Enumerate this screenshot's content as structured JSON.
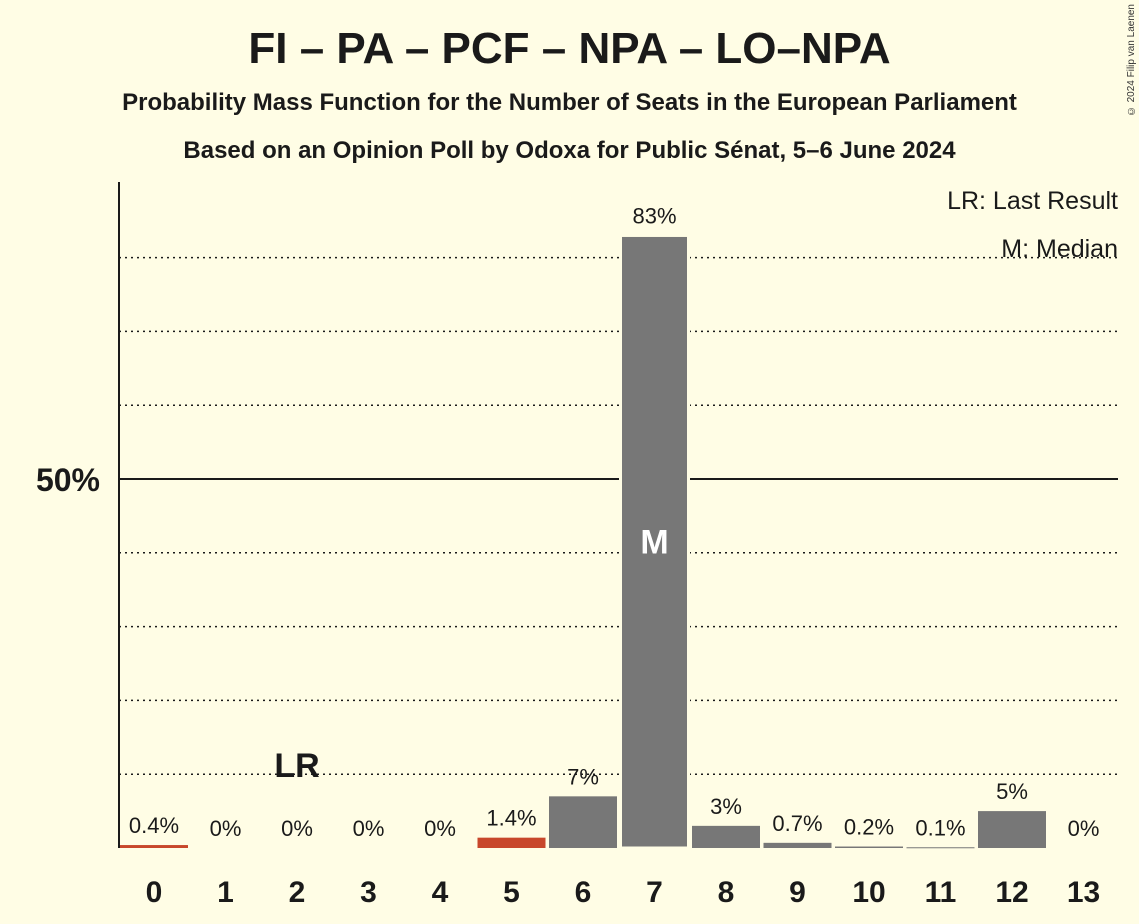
{
  "header": {
    "title": "FI – PA – PCF – NPA – LO–NPA",
    "subtitle1": "Probability Mass Function for the Number of Seats in the European Parliament",
    "subtitle2": "Based on an Opinion Poll by Odoxa for Public Sénat, 5–6 June 2024",
    "copyright": "© 2024 Filip van Laenen"
  },
  "legend": {
    "lr": "LR: Last Result",
    "median": "M: Median"
  },
  "colors": {
    "bar": "#777777",
    "last_result_bar": "#C8472B",
    "background": "#FFFDE5"
  },
  "chart_data": {
    "type": "bar",
    "categories": [
      "0",
      "1",
      "2",
      "3",
      "4",
      "5",
      "6",
      "7",
      "8",
      "9",
      "10",
      "11",
      "12",
      "13"
    ],
    "values": [
      0.4,
      0,
      0,
      0,
      0,
      1.4,
      7,
      83,
      3,
      0.7,
      0.2,
      0.1,
      5,
      0
    ],
    "labels": [
      "0.4%",
      "0%",
      "0%",
      "0%",
      "0%",
      "1.4%",
      "7%",
      "83%",
      "3%",
      "0.7%",
      "0.2%",
      "0.1%",
      "5%",
      "0%"
    ],
    "ylim": [
      0,
      90
    ],
    "y_tick_label": "50%",
    "y_tick_value": 50,
    "gridlines": [
      10,
      20,
      30,
      40,
      60,
      70,
      80
    ],
    "last_result_seat": "2",
    "last_result_label": "LR",
    "median_seat": "7",
    "median_label": "M",
    "highlighted_bars": [
      "0",
      "5"
    ]
  }
}
